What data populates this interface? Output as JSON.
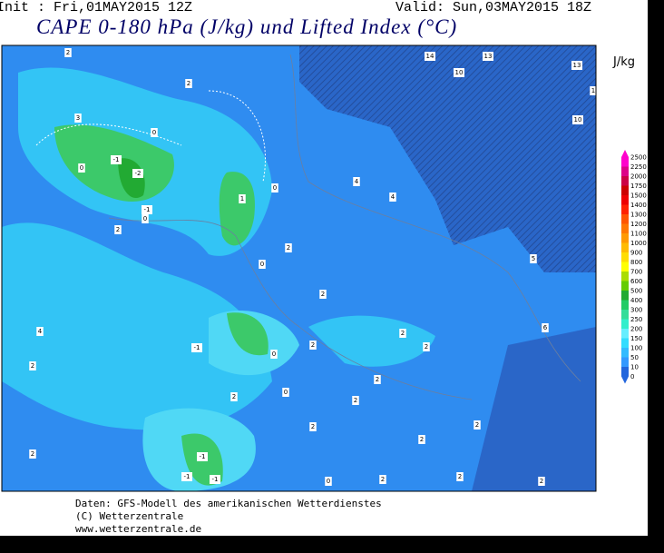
{
  "header": {
    "init": "Init : Fri,01MAY2015 12Z",
    "valid": "Valid: Sun,03MAY2015 18Z",
    "title": "CAPE 0-180 hPa (J/kg) und Lifted Index (°C)"
  },
  "legend": {
    "unit": "J/kg",
    "labels": [
      "2500",
      "2250",
      "2000",
      "1750",
      "1500",
      "1400",
      "1300",
      "1200",
      "1100",
      "1000",
      "900",
      "800",
      "700",
      "600",
      "500",
      "400",
      "300",
      "250",
      "200",
      "150",
      "100",
      "50",
      "10",
      "0"
    ]
  },
  "map": {
    "labels": [
      "14",
      "10",
      "13",
      "13",
      "1",
      "10",
      "2",
      "2",
      "3",
      "0",
      "-1",
      "-2",
      "0",
      "-1",
      "0",
      "1",
      "0",
      "2",
      "0",
      "2",
      "4",
      "4",
      "5",
      "2",
      "6",
      "2",
      "2",
      "2",
      "0",
      "-1",
      "4",
      "2",
      "2",
      "0",
      "2",
      "2",
      "2",
      "2",
      "2",
      "-1",
      "-1",
      "-1",
      "2",
      "2",
      "0",
      "2",
      "2"
    ]
  },
  "footer": {
    "lines": [
      "Daten: GFS-Modell des amerikanischen Wetterdienstes",
      "(C) Wetterzentrale",
      "www.wetterzentrale.de"
    ]
  }
}
